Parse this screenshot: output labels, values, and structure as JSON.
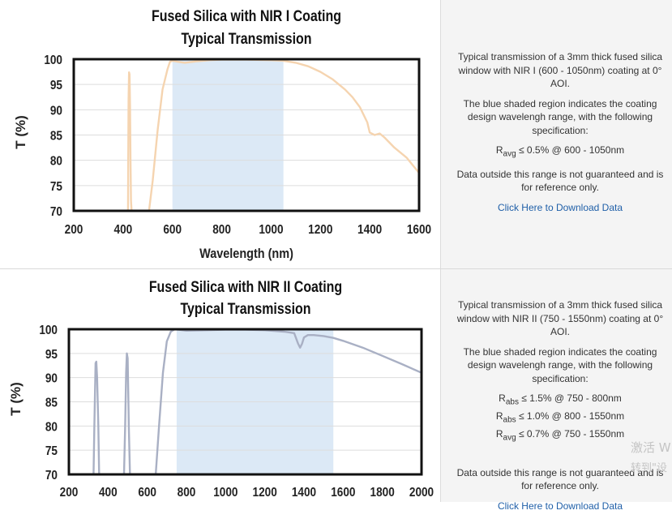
{
  "charts": [
    {
      "title_line1": "Fused Silica with NIR I Coating",
      "title_line2": "Typical Transmission",
      "ylabel": "T (%)",
      "xlabel": "Wavelength (nm)",
      "x_ticks": [
        "200",
        "400",
        "600",
        "800",
        "1000",
        "1200",
        "1400",
        "1600"
      ],
      "y_ticks": [
        "100",
        "95",
        "90",
        "85",
        "80",
        "75",
        "70"
      ]
    },
    {
      "title_line1": "Fused Silica with NIR II Coating",
      "title_line2": "Typical Transmission",
      "ylabel": "T (%)",
      "x_ticks": [
        "200",
        "400",
        "600",
        "800",
        "1000",
        "1200",
        "1400",
        "1600",
        "1800",
        "2000"
      ],
      "y_ticks": [
        "100",
        "95",
        "90",
        "85",
        "80",
        "75",
        "70"
      ]
    }
  ],
  "panels": [
    {
      "intro": "Typical transmission of a 3mm thick fused silica window with NIR I (600 - 1050nm) coating at 0° AOI.",
      "shaded_note": "The blue shaded region indicates the coating design wavelengh range, with the following specification:",
      "specs": [
        {
          "sym": "R",
          "sub": "avg",
          "text": " ≤ 0.5% @ 600 - 1050nm"
        }
      ],
      "disclaimer": "Data outside this range is not guaranteed and is for reference only.",
      "link": "Click Here to Download Data"
    },
    {
      "intro": "Typical transmission of a 3mm thick fused silica window with NIR II (750 - 1550nm) coating at 0° AOI.",
      "shaded_note": "The blue shaded region indicates the coating design wavelengh range, with the following specification:",
      "specs": [
        {
          "sym": "R",
          "sub": "abs",
          "text": " ≤ 1.5% @ 750 - 800nm"
        },
        {
          "sym": "R",
          "sub": "abs",
          "text": " ≤ 1.0% @ 800 - 1550nm"
        },
        {
          "sym": "R",
          "sub": "avg",
          "text": " ≤ 0.7% @ 750 - 1550nm"
        }
      ],
      "disclaimer": "Data outside this range is not guaranteed and is for reference only.",
      "link": "Click Here to Download Data"
    }
  ],
  "watermark": {
    "line1": "激活 W",
    "line2": "转到\"设"
  },
  "chart_data": [
    {
      "type": "line",
      "title": "Fused Silica with NIR I Coating Typical Transmission",
      "xlabel": "Wavelength (nm)",
      "ylabel": "T (%)",
      "xlim": [
        200,
        1600
      ],
      "ylim": [
        70,
        100
      ],
      "grid": true,
      "shaded_range": [
        600,
        1050
      ],
      "colors": {
        "line": "#f5d4b0",
        "shade": "#dce9f6",
        "frame": "#111111",
        "grid": "#dddddd"
      },
      "series": [
        {
          "x": [
            420,
            421,
            422,
            424,
            426,
            428,
            430,
            432,
            437,
            500,
            520,
            540,
            560,
            580,
            590,
            600,
            610,
            620,
            650,
            700,
            750,
            800,
            900,
            1000,
            1050,
            1100,
            1150,
            1200,
            1250,
            1300,
            1330,
            1360,
            1390,
            1400,
            1420,
            1440,
            1460,
            1500,
            1550,
            1600
          ],
          "y": [
            68,
            80,
            92,
            97.4,
            97,
            91,
            80,
            72,
            68,
            68,
            76,
            86,
            94,
            98,
            99.5,
            99.7,
            99.6,
            99.5,
            99.3,
            99.6,
            99.8,
            99.9,
            99.9,
            99.8,
            99.7,
            99.3,
            98.6,
            97.5,
            96,
            94,
            92.5,
            90.5,
            87.5,
            85.5,
            85,
            85.3,
            84.5,
            82.5,
            80.5,
            77.5
          ]
        }
      ]
    },
    {
      "type": "line",
      "title": "Fused Silica with NIR II Coating Typical Transmission",
      "ylabel": "T (%)",
      "xlim": [
        200,
        2000
      ],
      "ylim": [
        70,
        100
      ],
      "grid": true,
      "shaded_range": [
        750,
        1550
      ],
      "colors": {
        "line": "#a9b0c4",
        "shade": "#dce9f6",
        "frame": "#111111",
        "grid": "#dddddd"
      },
      "series": [
        {
          "x": [
            325,
            330,
            336,
            340,
            344,
            350,
            355,
            480,
            487,
            492,
            496,
            500,
            506,
            513,
            640,
            660,
            680,
            700,
            720,
            740,
            760,
            800,
            900,
            1000,
            1100,
            1200,
            1300,
            1350,
            1370,
            1380,
            1390,
            1400,
            1420,
            1450,
            1500,
            1550,
            1600,
            1700,
            1800,
            1900,
            2000
          ],
          "y": [
            68,
            80,
            93,
            93.3,
            90,
            80,
            68,
            68,
            80,
            91,
            95,
            94,
            80,
            68,
            68,
            80,
            91,
            97.5,
            99.5,
            100,
            99.9,
            99.7,
            99.8,
            99.9,
            99.9,
            99.8,
            99.5,
            99.2,
            97,
            96.2,
            97,
            98.3,
            98.8,
            98.8,
            98.6,
            98.2,
            97.6,
            96.2,
            94.5,
            92.8,
            91
          ]
        }
      ]
    }
  ]
}
